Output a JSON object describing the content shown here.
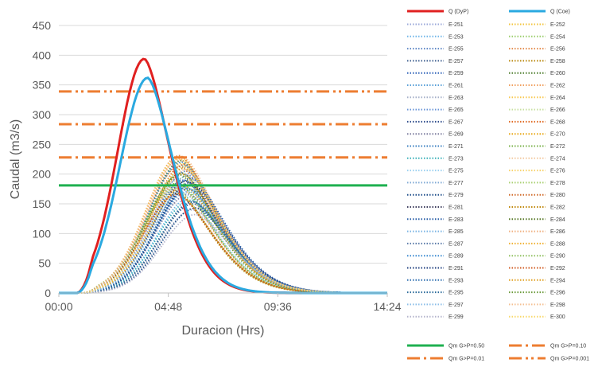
{
  "chart_data": {
    "type": "line",
    "title": "",
    "xlabel": "Duracion (Hrs)",
    "ylabel": "Caudal (m3/s)",
    "xlim_hours": [
      0,
      14.4
    ],
    "ylim": [
      0,
      450
    ],
    "yticks": [
      0,
      50,
      100,
      150,
      200,
      250,
      300,
      350,
      400,
      450
    ],
    "xticks": [
      {
        "value": 0,
        "label": "00:00"
      },
      {
        "value": 4.8,
        "label": "04:48"
      },
      {
        "value": 9.6,
        "label": "09:36"
      },
      {
        "value": 14.4,
        "label": "14:24"
      }
    ],
    "grid": "horizontal",
    "legend_position": "right",
    "main_series": [
      {
        "name": "Q (DyP)",
        "color": "#e02020",
        "peak": 394,
        "peak_time": 3.75,
        "rise": 1.9,
        "fall": 1.75
      },
      {
        "name": "Q (Coe)",
        "color": "#2aa9e0",
        "peak": 362,
        "peak_time": 3.9,
        "rise": 1.95,
        "fall": 1.75
      }
    ],
    "ensemble": {
      "names": [
        "E-251",
        "E-252",
        "E-253",
        "E-254",
        "E-255",
        "E-256",
        "E-257",
        "E-258",
        "E-259",
        "E-260",
        "E-261",
        "E-262",
        "E-263",
        "E-264",
        "E-265",
        "E-266",
        "E-267",
        "E-268",
        "E-269",
        "E-270",
        "E-271",
        "E-272",
        "E-273",
        "E-274",
        "E-275",
        "E-276",
        "E-277",
        "E-278",
        "E-279",
        "E-280",
        "E-281",
        "E-282",
        "E-283",
        "E-284",
        "E-285",
        "E-286",
        "E-287",
        "E-288",
        "E-289",
        "E-290",
        "E-291",
        "E-292",
        "E-293",
        "E-294",
        "E-295",
        "E-296",
        "E-297",
        "E-298",
        "E-299",
        "E-300"
      ],
      "colors": [
        "#9aa7d8",
        "#f2c33a",
        "#6fb6e8",
        "#9acd6a",
        "#5b84c4",
        "#e38a4a",
        "#3f5f8f",
        "#b8860b",
        "#2f63b8",
        "#4f7f2f",
        "#5aa0d8",
        "#f0a060",
        "#a6b0c8",
        "#f8c850",
        "#6a95d8",
        "#c8e0a0",
        "#2c4a8a",
        "#e06820",
        "#7f7f9f",
        "#e8a818",
        "#3a7fc0",
        "#78b048",
        "#3ab0b8",
        "#f3c9a0",
        "#9ad0f0",
        "#f7d26a",
        "#7fa9d4",
        "#a8d070",
        "#1f4e8a",
        "#d06a2a",
        "#404060",
        "#c08a10",
        "#2a5fa8",
        "#5a7a2a",
        "#7ab4e4",
        "#f0b080",
        "#5a7aa8",
        "#f0b030",
        "#3a8ad0",
        "#90c060",
        "#1f3f7f",
        "#d05a20",
        "#2f6fb0",
        "#e0a020",
        "#2a6a9a",
        "#6a9a3a",
        "#8abde8",
        "#f4bf90",
        "#b4b4cc",
        "#f8d868"
      ],
      "peaks": [
        200,
        218,
        162,
        190,
        205,
        213,
        150,
        172,
        190,
        223,
        176,
        181,
        140,
        226,
        210,
        196,
        182,
        231,
        166,
        200,
        214,
        185,
        156,
        208,
        170,
        230,
        198,
        176,
        143,
        216,
        188,
        168,
        193,
        202,
        171,
        224,
        154,
        180,
        220,
        178,
        186,
        166,
        175,
        210,
        153,
        199,
        178,
        230,
        132,
        213
      ],
      "peak_times": [
        5.5,
        5.4,
        5.8,
        5.2,
        5.6,
        5.3,
        5.9,
        5.1,
        5.5,
        5.4,
        5.7,
        5.2,
        5.9,
        5.3,
        5.5,
        5.6,
        5.8,
        5.3,
        5.7,
        5.4,
        5.5,
        5.2,
        5.8,
        5.6,
        5.4,
        5.3,
        5.7,
        5.1,
        6.0,
        5.5,
        5.6,
        5.2,
        5.8,
        5.4,
        5.7,
        5.3,
        5.9,
        5.5,
        5.4,
        5.6,
        5.8,
        5.2,
        5.7,
        5.5,
        5.9,
        5.3,
        5.6,
        5.4,
        6.0,
        5.5
      ],
      "rise": 2.4,
      "fall": 2.3
    },
    "thresholds": [
      {
        "name": "Qm G>P=0.50",
        "value": 181,
        "color": "#1fb050",
        "style": "solid"
      },
      {
        "name": "Qm G>P=0.10",
        "value": 228,
        "color": "#ed7d31",
        "style": "dashdot"
      },
      {
        "name": "Qm G>P=0.01",
        "value": 284,
        "color": "#ed7d31",
        "style": "dashdot"
      },
      {
        "name": "Qm G>P=0.001",
        "value": 339,
        "color": "#ed7d31",
        "style": "dashdotdot"
      }
    ]
  }
}
